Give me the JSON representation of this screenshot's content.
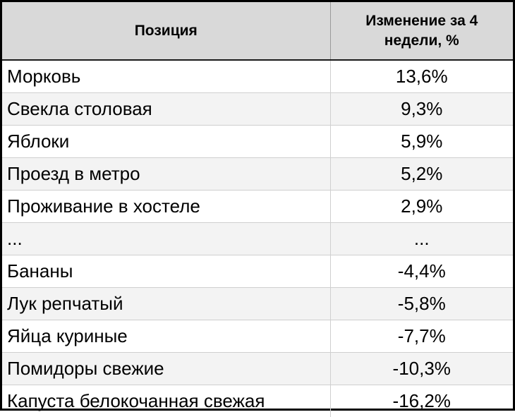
{
  "chart_data": {
    "type": "table",
    "columns": [
      "Позиция",
      "Изменение за 4 недели, %"
    ],
    "rows": [
      {
        "name": "Морковь",
        "value": "13,6%",
        "numeric": 13.6
      },
      {
        "name": "Свекла столовая",
        "value": "9,3%",
        "numeric": 9.3
      },
      {
        "name": "Яблоки",
        "value": "5,9%",
        "numeric": 5.9
      },
      {
        "name": "Проезд в метро",
        "value": "5,2%",
        "numeric": 5.2
      },
      {
        "name": "Проживание в хостеле",
        "value": "2,9%",
        "numeric": 2.9
      },
      {
        "name": "...",
        "value": "...",
        "numeric": null
      },
      {
        "name": "Бананы",
        "value": "-4,4%",
        "numeric": -4.4
      },
      {
        "name": "Лук репчатый",
        "value": "-5,8%",
        "numeric": -5.8
      },
      {
        "name": "Яйца куриные",
        "value": "-7,7%",
        "numeric": -7.7
      },
      {
        "name": "Помидоры свежие",
        "value": "-10,3%",
        "numeric": -10.3
      },
      {
        "name": "Капуста белокочанная свежая",
        "value": "-16,2%",
        "numeric": -16.2
      }
    ],
    "colors": {
      "header_bg": "#d9d9d9",
      "row_alt_bg": "#f3f3f3",
      "border": "#000000"
    }
  }
}
